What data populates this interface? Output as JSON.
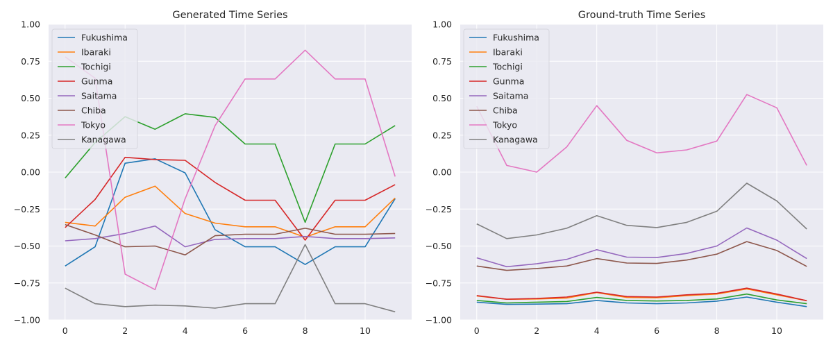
{
  "chart_data": [
    {
      "type": "line",
      "title": "Generated Time Series",
      "xlabel": "",
      "ylabel": "",
      "x": [
        0,
        1,
        2,
        3,
        4,
        5,
        6,
        7,
        8,
        9,
        10,
        11
      ],
      "xlim": [
        -0.55,
        11.55
      ],
      "ylim": [
        -1.0,
        1.0
      ],
      "xticks": [
        0,
        2,
        4,
        6,
        8,
        10
      ],
      "yticks": [
        -1.0,
        -0.75,
        -0.5,
        -0.25,
        0.0,
        0.25,
        0.5,
        0.75,
        1.0
      ],
      "ytick_labels": [
        "−1.00",
        "−0.75",
        "−0.50",
        "−0.25",
        "0.00",
        "0.25",
        "0.50",
        "0.75",
        "1.00"
      ],
      "grid": true,
      "legend_position": "top-left",
      "series": [
        {
          "name": "Fukushima",
          "color": "#1f77b4",
          "values": [
            -0.635,
            -0.505,
            0.06,
            0.09,
            -0.005,
            -0.39,
            -0.505,
            -0.505,
            -0.625,
            -0.505,
            -0.505,
            -0.18
          ]
        },
        {
          "name": "Ibaraki",
          "color": "#ff7f0e",
          "values": [
            -0.34,
            -0.365,
            -0.17,
            -0.095,
            -0.28,
            -0.345,
            -0.37,
            -0.37,
            -0.44,
            -0.37,
            -0.37,
            -0.175
          ]
        },
        {
          "name": "Tochigi",
          "color": "#2ca02c",
          "values": [
            -0.04,
            0.2,
            0.375,
            0.29,
            0.395,
            0.37,
            0.19,
            0.19,
            -0.34,
            0.19,
            0.19,
            0.315
          ]
        },
        {
          "name": "Gunma",
          "color": "#d62728",
          "values": [
            -0.375,
            -0.185,
            0.1,
            0.085,
            0.08,
            -0.07,
            -0.19,
            -0.19,
            -0.46,
            -0.19,
            -0.19,
            -0.085
          ]
        },
        {
          "name": "Saitama",
          "color": "#9467bd",
          "values": [
            -0.465,
            -0.45,
            -0.415,
            -0.365,
            -0.505,
            -0.455,
            -0.45,
            -0.45,
            -0.435,
            -0.45,
            -0.45,
            -0.445
          ]
        },
        {
          "name": "Chiba",
          "color": "#8c564b",
          "values": [
            -0.355,
            -0.425,
            -0.505,
            -0.5,
            -0.56,
            -0.43,
            -0.42,
            -0.42,
            -0.38,
            -0.42,
            -0.42,
            -0.415
          ]
        },
        {
          "name": "Tokyo",
          "color": "#e377c2",
          "values": [
            0.78,
            0.635,
            -0.69,
            -0.795,
            -0.18,
            0.315,
            0.63,
            0.63,
            0.825,
            0.63,
            0.63,
            -0.03
          ]
        },
        {
          "name": "Kanagawa",
          "color": "#7f7f7f",
          "values": [
            -0.785,
            -0.89,
            -0.91,
            -0.9,
            -0.905,
            -0.92,
            -0.89,
            -0.89,
            -0.49,
            -0.89,
            -0.89,
            -0.945
          ]
        }
      ]
    },
    {
      "type": "line",
      "title": "Ground-truth Time Series",
      "xlabel": "",
      "ylabel": "",
      "x": [
        0,
        1,
        2,
        3,
        4,
        5,
        6,
        7,
        8,
        9,
        10,
        11
      ],
      "xlim": [
        -0.55,
        11.55
      ],
      "ylim": [
        -1.0,
        1.0
      ],
      "xticks": [
        0,
        2,
        4,
        6,
        8,
        10
      ],
      "yticks": [
        -1.0,
        -0.75,
        -0.5,
        -0.25,
        0.0,
        0.25,
        0.5,
        0.75,
        1.0
      ],
      "ytick_labels": [
        "−1.00",
        "−0.75",
        "−0.50",
        "−0.25",
        "0.00",
        "0.25",
        "0.50",
        "0.75",
        "1.00"
      ],
      "grid": true,
      "legend_position": "top-left",
      "series": [
        {
          "name": "Fukushima",
          "color": "#1f77b4",
          "values": [
            -0.88,
            -0.895,
            -0.893,
            -0.89,
            -0.868,
            -0.885,
            -0.89,
            -0.885,
            -0.873,
            -0.845,
            -0.88,
            -0.91
          ]
        },
        {
          "name": "Ibaraki",
          "color": "#ff7f0e",
          "values": [
            -0.838,
            -0.86,
            -0.858,
            -0.852,
            -0.815,
            -0.848,
            -0.85,
            -0.835,
            -0.825,
            -0.79,
            -0.83,
            -0.87
          ]
        },
        {
          "name": "Tochigi",
          "color": "#2ca02c",
          "values": [
            -0.868,
            -0.885,
            -0.88,
            -0.875,
            -0.848,
            -0.868,
            -0.872,
            -0.868,
            -0.858,
            -0.825,
            -0.865,
            -0.89
          ]
        },
        {
          "name": "Gunma",
          "color": "#d62728",
          "values": [
            -0.835,
            -0.86,
            -0.855,
            -0.845,
            -0.812,
            -0.842,
            -0.845,
            -0.83,
            -0.82,
            -0.785,
            -0.825,
            -0.87
          ]
        },
        {
          "name": "Saitama",
          "color": "#9467bd",
          "values": [
            -0.58,
            -0.64,
            -0.62,
            -0.59,
            -0.525,
            -0.575,
            -0.578,
            -0.55,
            -0.5,
            -0.378,
            -0.46,
            -0.585
          ]
        },
        {
          "name": "Chiba",
          "color": "#8c564b",
          "values": [
            -0.635,
            -0.665,
            -0.652,
            -0.635,
            -0.585,
            -0.615,
            -0.618,
            -0.595,
            -0.555,
            -0.47,
            -0.53,
            -0.638
          ]
        },
        {
          "name": "Tokyo",
          "color": "#e377c2",
          "values": [
            0.445,
            0.045,
            0.0,
            0.17,
            0.45,
            0.215,
            0.13,
            0.15,
            0.21,
            0.525,
            0.435,
            0.045
          ]
        },
        {
          "name": "Kanagawa",
          "color": "#7f7f7f",
          "values": [
            -0.35,
            -0.45,
            -0.425,
            -0.38,
            -0.295,
            -0.36,
            -0.375,
            -0.34,
            -0.265,
            -0.075,
            -0.195,
            -0.385
          ]
        }
      ]
    }
  ]
}
